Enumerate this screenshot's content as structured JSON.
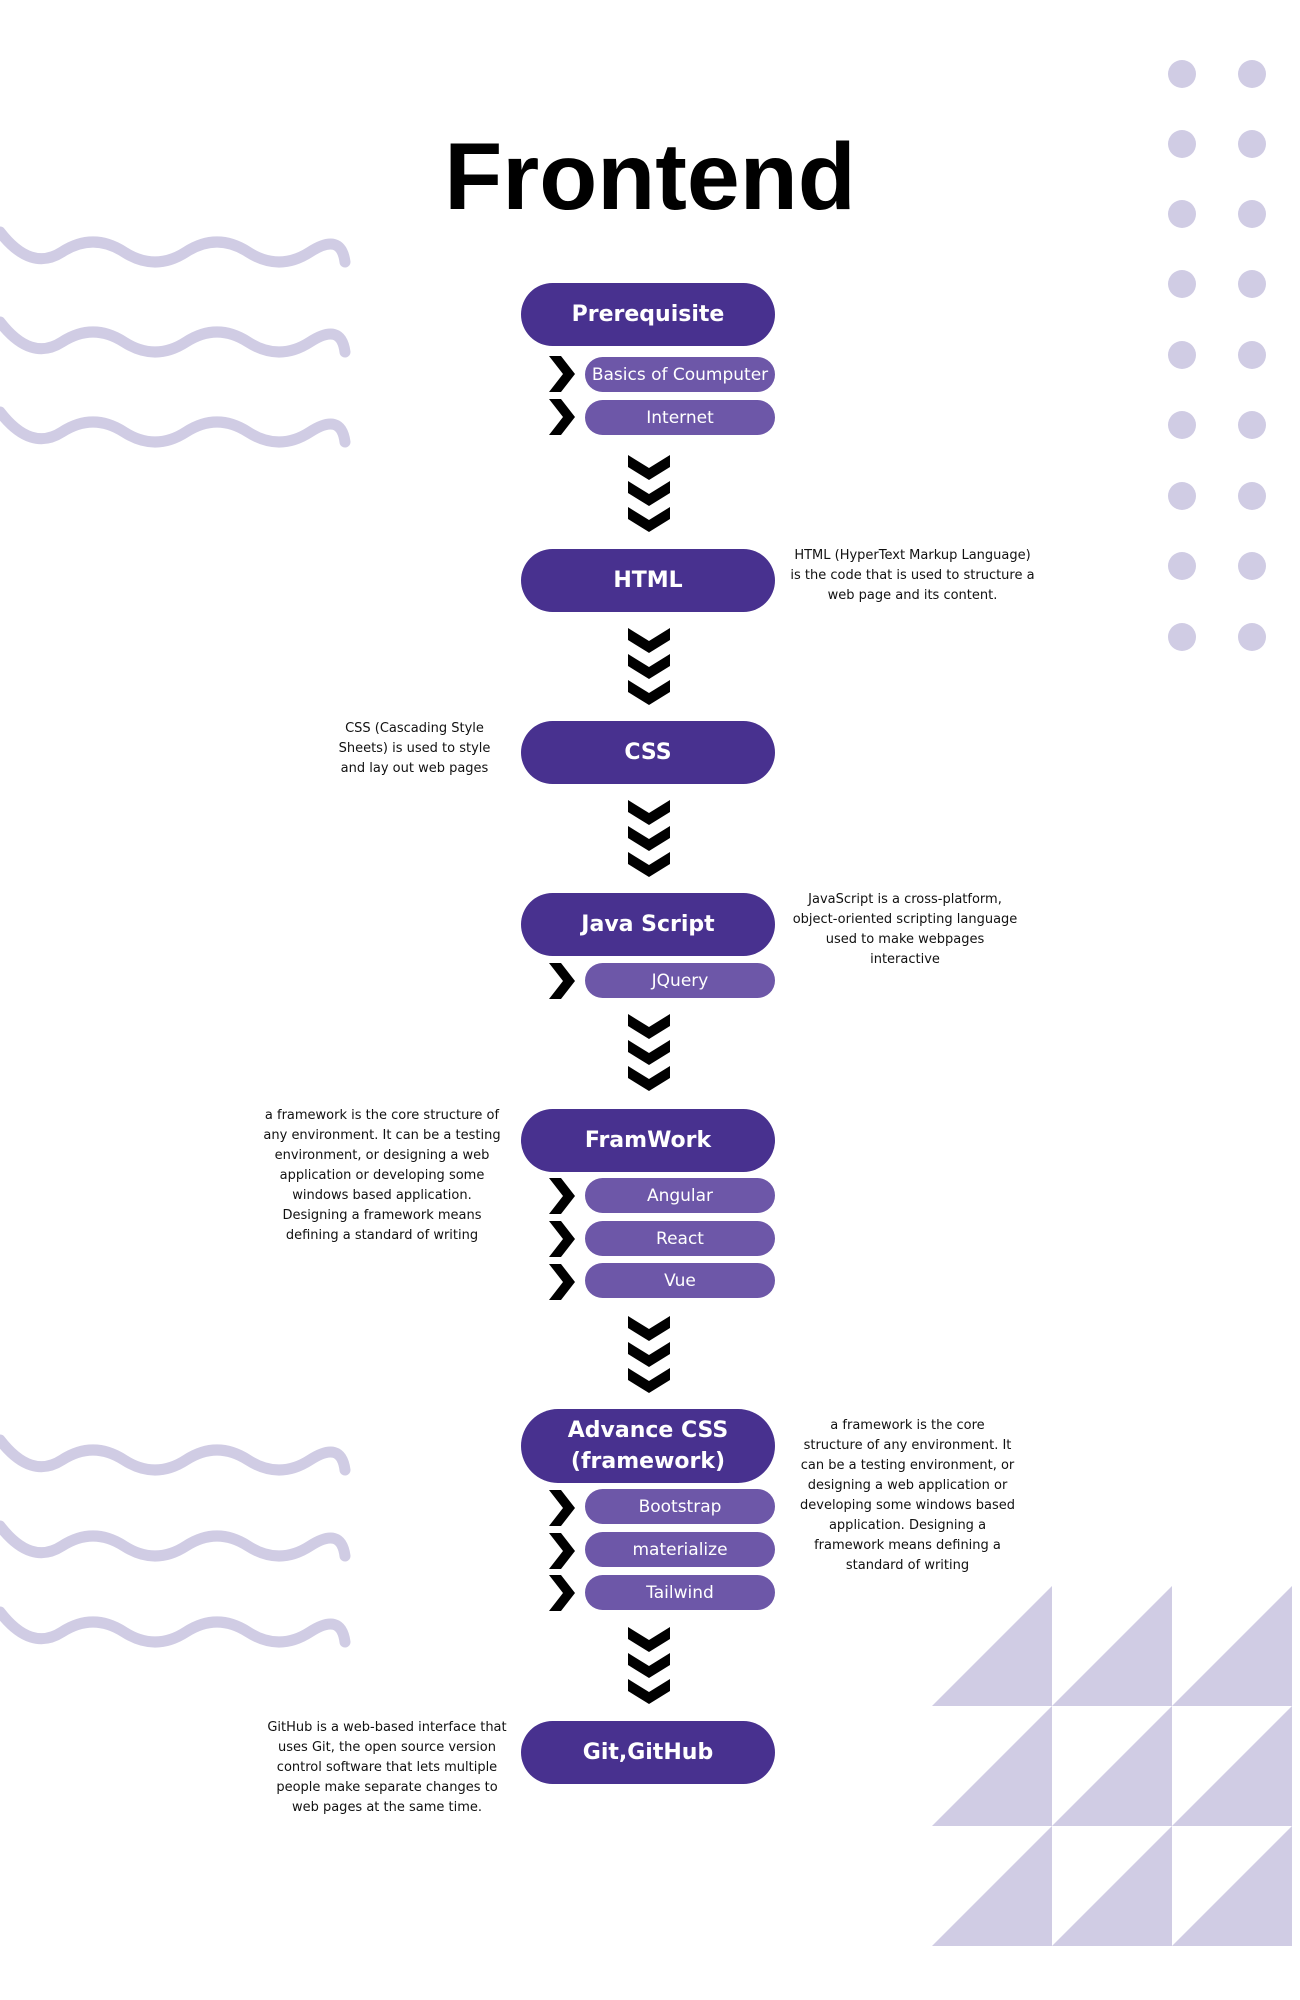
{
  "title": "Frontend",
  "colors": {
    "node": "#48318f",
    "pill": "#6d57a8",
    "decor": "#d0cce4",
    "arrow": "#000000"
  },
  "nodes": {
    "prerequisite": {
      "label": "Prerequisite",
      "items": [
        "Basics of Coumputer",
        "Internet"
      ]
    },
    "html": {
      "label": "HTML",
      "description": "HTML (HyperText Markup Language) is the code that is used to structure a web page and its content."
    },
    "css": {
      "label": "CSS",
      "description": "CSS (Cascading Style Sheets) is used to style and lay out web pages"
    },
    "javascript": {
      "label": "Java Script",
      "items": [
        "JQuery"
      ],
      "description": "JavaScript is a cross-platform, object-oriented scripting language used to make webpages interactive"
    },
    "framework": {
      "label": "FramWork",
      "items": [
        "Angular",
        "React",
        "Vue"
      ],
      "description": "a framework is the core structure of any environment. It can be a testing environment, or designing a web application or developing some windows based application. Designing a framework means defining a standard of writing"
    },
    "advance_css": {
      "label_line1": "Advance CSS",
      "label_line2": "(framework)",
      "items": [
        "Bootstrap",
        "materialize",
        "Tailwind"
      ],
      "description": "a framework is the core structure of any environment. It can be a testing environment, or designing a web application or developing some windows based application. Designing a framework means defining a standard of writing"
    },
    "git": {
      "label": "Git,GitHub",
      "description": "GitHub is a web-based interface that uses Git, the open source version control software that lets multiple people make separate changes to web pages at the same time."
    }
  }
}
